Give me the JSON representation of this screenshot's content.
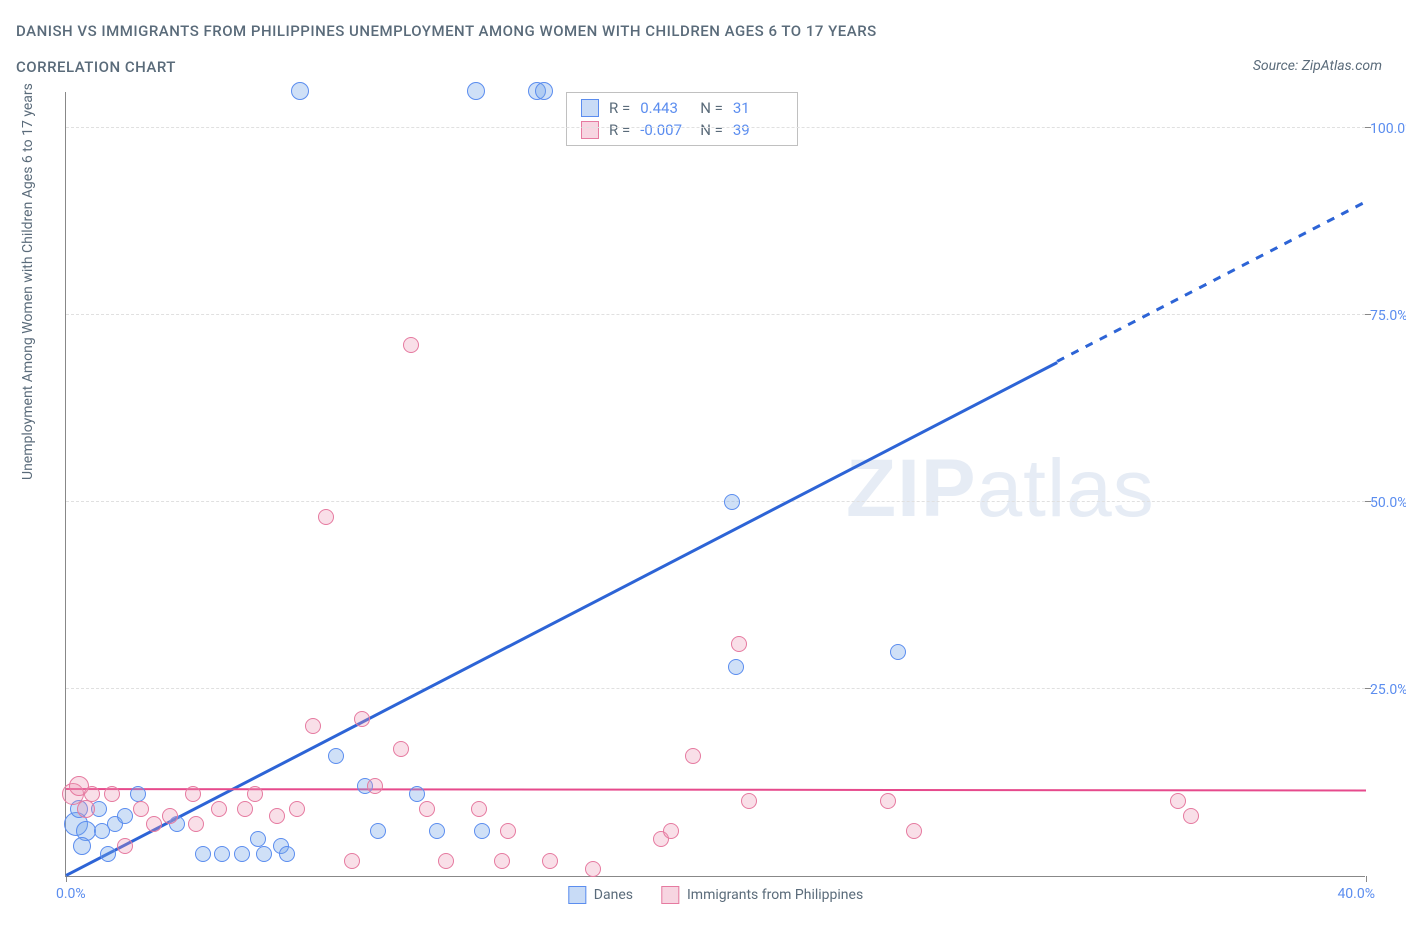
{
  "title_main": "DANISH VS IMMIGRANTS FROM PHILIPPINES UNEMPLOYMENT AMONG WOMEN WITH CHILDREN AGES 6 TO 17 YEARS",
  "title_sub": "CORRELATION CHART",
  "source_label": "Source: ZipAtlas.com",
  "y_axis_label": "Unemployment Among Women with Children Ages 6 to 17 years",
  "watermark_bold": "ZIP",
  "watermark_rest": "atlas",
  "chart": {
    "type": "scatter",
    "xlim": [
      0,
      40
    ],
    "ylim": [
      0,
      105
    ],
    "x_ticks": [
      {
        "v": 0,
        "label": "0.0%"
      },
      {
        "v": 40,
        "label": "40.0%"
      }
    ],
    "y_ticks": [
      {
        "v": 25,
        "label": "25.0%"
      },
      {
        "v": 50,
        "label": "50.0%"
      },
      {
        "v": 75,
        "label": "75.0%"
      },
      {
        "v": 100,
        "label": "100.0%"
      }
    ],
    "grid_color": "#e0e0e0",
    "background_color": "#ffffff",
    "axis_color": "#888888",
    "series": [
      {
        "name": "Danes",
        "color_fill": "rgba(118,166,233,0.35)",
        "color_stroke": "#5b8def",
        "marker_r": 8,
        "trend": {
          "color": "#2d64d6",
          "solid_xrange": [
            0,
            30.5
          ],
          "dash_xrange": [
            30.5,
            40
          ],
          "y_at_x0": 0,
          "y_at_x40": 90
        },
        "R": "0.443",
        "N": "31",
        "points": [
          {
            "x": 0.3,
            "y": 7,
            "r": 12
          },
          {
            "x": 0.4,
            "y": 9,
            "r": 9
          },
          {
            "x": 0.6,
            "y": 6,
            "r": 10
          },
          {
            "x": 0.5,
            "y": 4,
            "r": 9
          },
          {
            "x": 1.0,
            "y": 9,
            "r": 8
          },
          {
            "x": 1.1,
            "y": 6,
            "r": 8
          },
          {
            "x": 1.3,
            "y": 3,
            "r": 8
          },
          {
            "x": 1.5,
            "y": 7,
            "r": 8
          },
          {
            "x": 1.8,
            "y": 8,
            "r": 8
          },
          {
            "x": 2.2,
            "y": 11,
            "r": 8
          },
          {
            "x": 3.4,
            "y": 7,
            "r": 8
          },
          {
            "x": 4.2,
            "y": 3,
            "r": 8
          },
          {
            "x": 4.8,
            "y": 3,
            "r": 8
          },
          {
            "x": 5.4,
            "y": 3,
            "r": 8
          },
          {
            "x": 5.9,
            "y": 5,
            "r": 8
          },
          {
            "x": 6.1,
            "y": 3,
            "r": 8
          },
          {
            "x": 6.6,
            "y": 4,
            "r": 8
          },
          {
            "x": 6.8,
            "y": 3,
            "r": 8
          },
          {
            "x": 7.2,
            "y": 105,
            "r": 9
          },
          {
            "x": 8.3,
            "y": 16,
            "r": 8
          },
          {
            "x": 9.2,
            "y": 12,
            "r": 8
          },
          {
            "x": 9.6,
            "y": 6,
            "r": 8
          },
          {
            "x": 10.8,
            "y": 11,
            "r": 8
          },
          {
            "x": 11.4,
            "y": 6,
            "r": 8
          },
          {
            "x": 12.6,
            "y": 105,
            "r": 9
          },
          {
            "x": 12.8,
            "y": 6,
            "r": 8
          },
          {
            "x": 14.5,
            "y": 105,
            "r": 9
          },
          {
            "x": 14.7,
            "y": 105,
            "r": 9
          },
          {
            "x": 20.5,
            "y": 50,
            "r": 8
          },
          {
            "x": 20.6,
            "y": 28,
            "r": 8
          },
          {
            "x": 25.6,
            "y": 30,
            "r": 8
          }
        ]
      },
      {
        "name": "Immigrants from Philippines",
        "color_fill": "rgba(236,150,180,0.3)",
        "color_stroke": "#e67aa0",
        "marker_r": 8,
        "trend": {
          "color": "#e64a8c",
          "solid_xrange": [
            0,
            40
          ],
          "y_at_x0": 11.5,
          "y_at_x40": 11.3
        },
        "R": "-0.007",
        "N": "39",
        "points": [
          {
            "x": 0.2,
            "y": 11,
            "r": 11
          },
          {
            "x": 0.4,
            "y": 12,
            "r": 10
          },
          {
            "x": 0.6,
            "y": 9,
            "r": 9
          },
          {
            "x": 0.8,
            "y": 11,
            "r": 8
          },
          {
            "x": 1.4,
            "y": 11,
            "r": 8
          },
          {
            "x": 1.8,
            "y": 4,
            "r": 8
          },
          {
            "x": 2.3,
            "y": 9,
            "r": 8
          },
          {
            "x": 2.7,
            "y": 7,
            "r": 8
          },
          {
            "x": 3.2,
            "y": 8,
            "r": 8
          },
          {
            "x": 3.9,
            "y": 11,
            "r": 8
          },
          {
            "x": 4.0,
            "y": 7,
            "r": 8
          },
          {
            "x": 4.7,
            "y": 9,
            "r": 8
          },
          {
            "x": 5.5,
            "y": 9,
            "r": 8
          },
          {
            "x": 5.8,
            "y": 11,
            "r": 8
          },
          {
            "x": 6.5,
            "y": 8,
            "r": 8
          },
          {
            "x": 7.1,
            "y": 9,
            "r": 8
          },
          {
            "x": 7.6,
            "y": 20,
            "r": 8
          },
          {
            "x": 8.0,
            "y": 48,
            "r": 8
          },
          {
            "x": 8.8,
            "y": 2,
            "r": 8
          },
          {
            "x": 9.1,
            "y": 21,
            "r": 8
          },
          {
            "x": 9.5,
            "y": 12,
            "r": 8
          },
          {
            "x": 10.3,
            "y": 17,
            "r": 8
          },
          {
            "x": 10.6,
            "y": 71,
            "r": 8
          },
          {
            "x": 11.1,
            "y": 9,
            "r": 8
          },
          {
            "x": 11.7,
            "y": 2,
            "r": 8
          },
          {
            "x": 12.7,
            "y": 9,
            "r": 8
          },
          {
            "x": 13.4,
            "y": 2,
            "r": 8
          },
          {
            "x": 13.6,
            "y": 6,
            "r": 8
          },
          {
            "x": 14.9,
            "y": 2,
            "r": 8
          },
          {
            "x": 16.2,
            "y": 1,
            "r": 8
          },
          {
            "x": 18.3,
            "y": 5,
            "r": 8
          },
          {
            "x": 18.6,
            "y": 6,
            "r": 8
          },
          {
            "x": 19.3,
            "y": 16,
            "r": 8
          },
          {
            "x": 20.7,
            "y": 31,
            "r": 8
          },
          {
            "x": 21.0,
            "y": 10,
            "r": 8
          },
          {
            "x": 25.3,
            "y": 10,
            "r": 8
          },
          {
            "x": 26.1,
            "y": 6,
            "r": 8
          },
          {
            "x": 34.2,
            "y": 10,
            "r": 8
          },
          {
            "x": 34.6,
            "y": 8,
            "r": 8
          }
        ]
      }
    ]
  },
  "stat_box": {
    "rows": [
      {
        "swatch": "blue",
        "r_label": "R =",
        "r_val": "0.443",
        "n_label": "N =",
        "n_val": "31"
      },
      {
        "swatch": "pink",
        "r_label": "R =",
        "r_val": "-0.007",
        "n_label": "N =",
        "n_val": "39"
      }
    ]
  },
  "legend": {
    "items": [
      {
        "swatch": "blue",
        "label": "Danes"
      },
      {
        "swatch": "pink",
        "label": "Immigrants from Philippines"
      }
    ]
  }
}
